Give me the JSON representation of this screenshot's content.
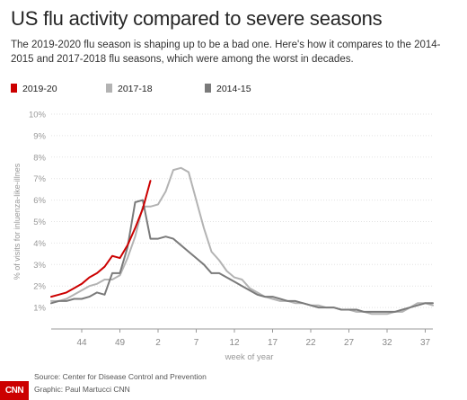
{
  "header": {
    "title": "US flu activity compared to severe seasons",
    "subtitle": "The 2019-2020 flu season is shaping up to be a bad one. Here's how it compares to the 2014-2015 and 2017-2018 flu seasons, which were among the worst in decades."
  },
  "footer": {
    "source": "Source: Center for Disease Control and Prevention",
    "credit": "Graphic: Paul Martucci CNN",
    "logo": "CNN"
  },
  "chart_data": {
    "type": "line",
    "xlabel": "week of year",
    "ylabel": "% of visits for inluenza-like-illnes",
    "ylim": [
      0,
      10
    ],
    "yticks": [
      "1%",
      "2%",
      "3%",
      "4%",
      "5%",
      "6%",
      "7%",
      "8%",
      "9%",
      "10%"
    ],
    "xticks": [
      "44",
      "49",
      "2",
      "7",
      "12",
      "17",
      "22",
      "27",
      "32",
      "37"
    ],
    "x_domain_weeks_index": [
      40,
      38
    ],
    "legend_position": "top-left",
    "grid": true,
    "series": [
      {
        "name": "2019-20",
        "color": "#cc0000",
        "x": [
          40,
          41,
          42,
          43,
          44,
          45,
          46,
          47,
          48,
          49,
          50,
          51,
          52,
          1
        ],
        "values": [
          1.5,
          1.6,
          1.7,
          1.9,
          2.1,
          2.4,
          2.6,
          2.9,
          3.4,
          3.3,
          3.9,
          4.7,
          5.6,
          6.9
        ]
      },
      {
        "name": "2017-18",
        "color": "#b3b3b3",
        "x": [
          40,
          41,
          42,
          43,
          44,
          45,
          46,
          47,
          48,
          49,
          50,
          51,
          52,
          1,
          2,
          3,
          4,
          5,
          6,
          7,
          8,
          9,
          10,
          11,
          12,
          13,
          14,
          15,
          16,
          17,
          18,
          19,
          20,
          21,
          22,
          23,
          24,
          25,
          26,
          27,
          28,
          29,
          30,
          31,
          32,
          33,
          34,
          35,
          36,
          37,
          38
        ],
        "values": [
          1.3,
          1.3,
          1.4,
          1.6,
          1.8,
          2.0,
          2.1,
          2.3,
          2.3,
          2.5,
          3.3,
          4.3,
          5.7,
          5.7,
          5.8,
          6.4,
          7.4,
          7.5,
          7.3,
          6.0,
          4.7,
          3.6,
          3.2,
          2.7,
          2.4,
          2.3,
          1.9,
          1.7,
          1.5,
          1.4,
          1.3,
          1.3,
          1.2,
          1.2,
          1.1,
          1.1,
          1.0,
          1.0,
          0.9,
          0.9,
          0.8,
          0.8,
          0.7,
          0.7,
          0.7,
          0.8,
          0.8,
          1.0,
          1.2,
          1.2,
          1.1
        ]
      },
      {
        "name": "2014-15",
        "color": "#7a7a7a",
        "x": [
          40,
          41,
          42,
          43,
          44,
          45,
          46,
          47,
          48,
          49,
          50,
          51,
          52,
          1,
          2,
          3,
          4,
          5,
          6,
          7,
          8,
          9,
          10,
          11,
          12,
          13,
          14,
          15,
          16,
          17,
          18,
          19,
          20,
          21,
          22,
          23,
          24,
          25,
          26,
          27,
          28,
          29,
          30,
          31,
          32,
          33,
          34,
          35,
          36,
          37,
          38
        ],
        "values": [
          1.2,
          1.3,
          1.3,
          1.4,
          1.4,
          1.5,
          1.7,
          1.6,
          2.6,
          2.6,
          3.8,
          5.9,
          6.0,
          4.2,
          4.2,
          4.3,
          4.2,
          3.9,
          3.6,
          3.3,
          3.0,
          2.6,
          2.6,
          2.4,
          2.2,
          2.0,
          1.8,
          1.6,
          1.5,
          1.5,
          1.4,
          1.3,
          1.3,
          1.2,
          1.1,
          1.0,
          1.0,
          1.0,
          0.9,
          0.9,
          0.9,
          0.8,
          0.8,
          0.8,
          0.8,
          0.8,
          0.9,
          1.0,
          1.1,
          1.2,
          1.2
        ]
      }
    ]
  }
}
